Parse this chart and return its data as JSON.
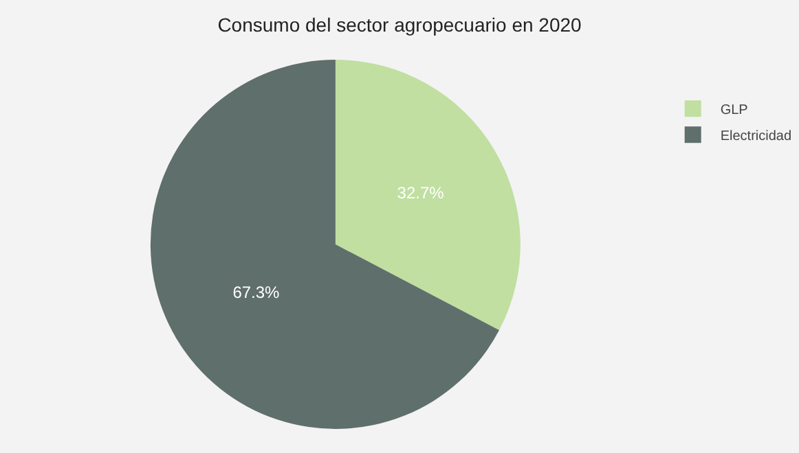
{
  "chart_data": {
    "type": "pie",
    "title": "Consumo del sector agropecuario en 2020",
    "categories": [
      "GLP",
      "Electricidad"
    ],
    "values": [
      32.7,
      67.3
    ],
    "value_labels": [
      "32.7%",
      "67.3%"
    ],
    "colors": [
      "#c0dfa1",
      "#5f6f6b"
    ],
    "legend": "top right"
  }
}
